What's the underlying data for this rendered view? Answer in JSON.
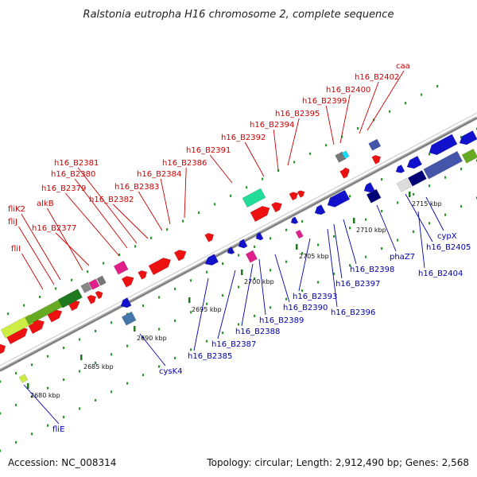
{
  "title": "Ralstonia eutropha H16 chromosome 2, complete sequence",
  "footer": {
    "accession": "Accession: NC_008314",
    "summary": "Topology: circular; Length: 2,912,490 bp; Genes: 2,568"
  },
  "colors": {
    "forward": "#ee1111",
    "reverse": "#1111cc",
    "forward_label": "#cc0000",
    "reverse_label": "#0000aa",
    "backbone": "#a8a8a8",
    "pink": "#e0208a",
    "green": "#66aa22",
    "lightgreen": "#ccee44",
    "darkgreen": "#1f7a1f",
    "teal": "#22dd99",
    "cyan": "#11ddff",
    "navy": "#000077",
    "slate": "#4455aa",
    "gray": "#888888",
    "steel": "#4477aa"
  },
  "ticks": [
    {
      "label": "2680 kbp"
    },
    {
      "label": "2685 kbp"
    },
    {
      "label": "2690 kbp"
    },
    {
      "label": "2695 kbp"
    },
    {
      "label": "2700 kbp"
    },
    {
      "label": "2705 kbp"
    },
    {
      "label": "2710 kbp"
    },
    {
      "label": "2715 kbp"
    }
  ],
  "forward_labels": [
    "fliI",
    "fliJ",
    "fliK2",
    "alkB",
    "h16_B2377",
    "h16_B2379",
    "h16_B2380",
    "h16_B2381",
    "h16_B2382",
    "h16_B2383",
    "h16_B2384",
    "h16_B2386",
    "h16_B2391",
    "h16_B2392",
    "h16_B2394",
    "h16_B2395",
    "h16_B2399",
    "h16_B2400",
    "h16_B2402",
    "caa"
  ],
  "reverse_labels": [
    "fliE",
    "cysK4",
    "h16_B2385",
    "h16_B2387",
    "h16_B2388",
    "h16_B2389",
    "h16_B2390",
    "h16_B2393",
    "h16_B2396",
    "h16_B2397",
    "h16_B2398",
    "phaZ7",
    "h16_B2405",
    "cypX",
    "h16_B2404"
  ]
}
